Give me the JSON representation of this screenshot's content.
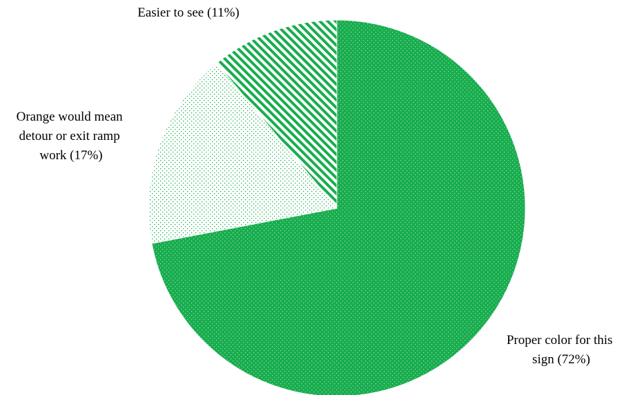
{
  "chart_data": {
    "type": "pie",
    "title": "",
    "start_angle_deg": 0,
    "direction": "clockwise",
    "slices": [
      {
        "label": "Proper color for this sign (72%)",
        "label_lines": [
          "Proper color for this",
          "sign (72%)"
        ],
        "value": 72,
        "color": "#18AD4E",
        "pattern": "dense-dots"
      },
      {
        "label": "Orange would mean detour or exit ramp work (17%)",
        "label_lines": [
          "Orange would mean",
          "detour or exit ramp",
          "work (17%)"
        ],
        "value": 17,
        "color": "#18AD4E",
        "pattern": "sparse-dots"
      },
      {
        "label": "Easier to see (11%)",
        "label_lines": [
          "Easier to see (11%)"
        ],
        "value": 11,
        "color": "#18AD4E",
        "pattern": "diagonal-stripes"
      }
    ]
  }
}
